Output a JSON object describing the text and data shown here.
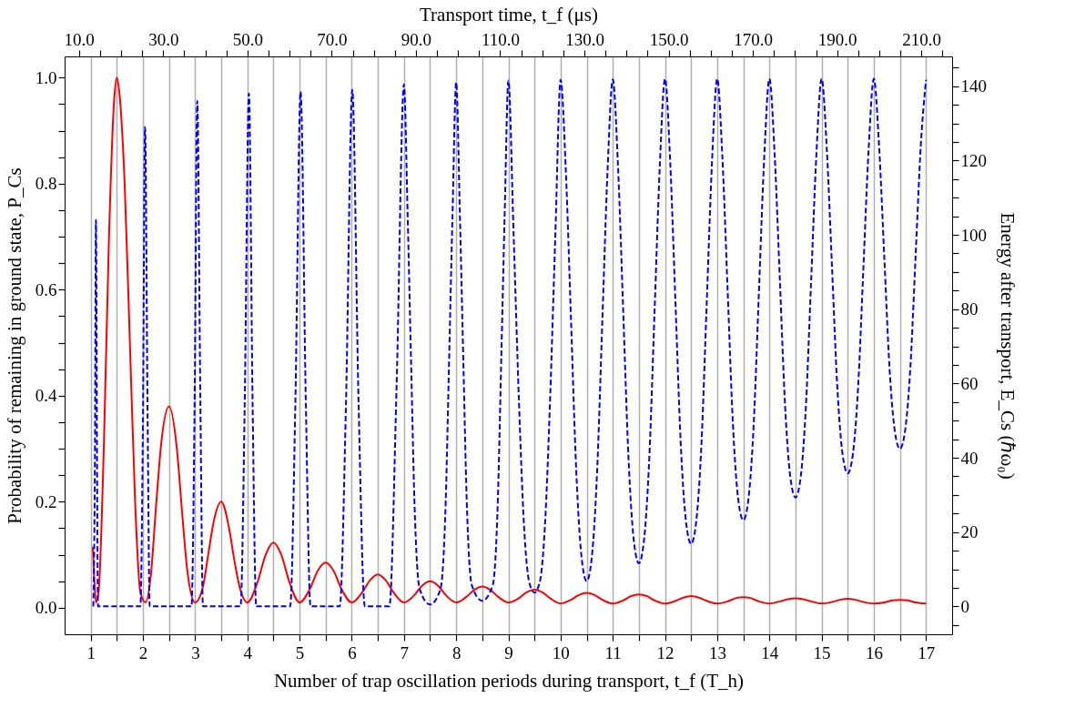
{
  "chart_data": {
    "type": "line",
    "xlabel": "Number of trap oscillation periods during transport, t_f (T_h)",
    "ylabel": "Probability of remaining in ground state, P_Cs",
    "y2label": "Energy after transport, E_Cs (ℏω₀)",
    "x2label": "Transport time, t_f (μs)",
    "xlim": [
      0.5,
      17.5
    ],
    "xticks": [
      1,
      {
        "value": 1.5,
        "label": null
      },
      2,
      {
        "value": 2.5,
        "label": null
      },
      3,
      {
        "value": 3.5,
        "label": null
      },
      4,
      {
        "value": 4.5,
        "label": null
      },
      5,
      {
        "value": 5.5,
        "label": null
      },
      6,
      {
        "value": 6.5,
        "label": null
      },
      7,
      {
        "value": 7.5,
        "label": null
      },
      8,
      {
        "value": 8.5,
        "label": null
      },
      9,
      {
        "value": 9.5,
        "label": null
      },
      10,
      {
        "value": 10.5,
        "label": null
      },
      11,
      {
        "value": 11.5,
        "label": null
      },
      12,
      {
        "value": 12.5,
        "label": null
      },
      13,
      {
        "value": 13.5,
        "label": null
      },
      14,
      {
        "value": 14.5,
        "label": null
      },
      15,
      {
        "value": 15.5,
        "label": null
      },
      16,
      {
        "value": 16.5,
        "label": null
      },
      17
    ],
    "x2lim": [
      6.6,
      217.3
    ],
    "x2ticks": [
      {
        "value": 10,
        "label": "10.0"
      },
      {
        "value": 15,
        "label": null
      },
      {
        "value": 20,
        "label": null
      },
      {
        "value": 25,
        "label": null
      },
      {
        "value": 30,
        "label": "30.0"
      },
      {
        "value": 35,
        "label": null
      },
      {
        "value": 40,
        "label": null
      },
      {
        "value": 45,
        "label": null
      },
      {
        "value": 50,
        "label": "50.0"
      },
      {
        "value": 55,
        "label": null
      },
      {
        "value": 60,
        "label": null
      },
      {
        "value": 65,
        "label": null
      },
      {
        "value": 70,
        "label": "70.0"
      },
      {
        "value": 75,
        "label": null
      },
      {
        "value": 80,
        "label": null
      },
      {
        "value": 85,
        "label": null
      },
      {
        "value": 90,
        "label": "90.0"
      },
      {
        "value": 95,
        "label": null
      },
      {
        "value": 100,
        "label": null
      },
      {
        "value": 105,
        "label": null
      },
      {
        "value": 110,
        "label": "110.0"
      },
      {
        "value": 115,
        "label": null
      },
      {
        "value": 120,
        "label": null
      },
      {
        "value": 125,
        "label": null
      },
      {
        "value": 130,
        "label": "130.0"
      },
      {
        "value": 135,
        "label": null
      },
      {
        "value": 140,
        "label": null
      },
      {
        "value": 145,
        "label": null
      },
      {
        "value": 150,
        "label": "150.0"
      },
      {
        "value": 155,
        "label": null
      },
      {
        "value": 160,
        "label": null
      },
      {
        "value": 165,
        "label": null
      },
      {
        "value": 170,
        "label": "170.0"
      },
      {
        "value": 175,
        "label": null
      },
      {
        "value": 180,
        "label": null
      },
      {
        "value": 185,
        "label": null
      },
      {
        "value": 190,
        "label": "190.0"
      },
      {
        "value": 195,
        "label": null
      },
      {
        "value": 200,
        "label": null
      },
      {
        "value": 205,
        "label": null
      },
      {
        "value": 210,
        "label": "210.0"
      },
      {
        "value": 215,
        "label": null
      }
    ],
    "ylim": [
      -0.05,
      1.04
    ],
    "yticks": [
      {
        "value": 0,
        "label": "0.0"
      },
      {
        "value": 0.05,
        "label": null
      },
      {
        "value": 0.1,
        "label": null
      },
      {
        "value": 0.15,
        "label": null
      },
      {
        "value": 0.2,
        "label": "0.2"
      },
      {
        "value": 0.25,
        "label": null
      },
      {
        "value": 0.3,
        "label": null
      },
      {
        "value": 0.35,
        "label": null
      },
      {
        "value": 0.4,
        "label": "0.4"
      },
      {
        "value": 0.45,
        "label": null
      },
      {
        "value": 0.5,
        "label": null
      },
      {
        "value": 0.55,
        "label": null
      },
      {
        "value": 0.6,
        "label": "0.6"
      },
      {
        "value": 0.65,
        "label": null
      },
      {
        "value": 0.7,
        "label": null
      },
      {
        "value": 0.75,
        "label": null
      },
      {
        "value": 0.8,
        "label": "0.8"
      },
      {
        "value": 0.85,
        "label": null
      },
      {
        "value": 0.9,
        "label": null
      },
      {
        "value": 0.95,
        "label": null
      },
      {
        "value": 1.0,
        "label": "1.0"
      }
    ],
    "y2lim": [
      -7.5,
      148
    ],
    "y2ticks": [
      {
        "value": -5,
        "label": null
      },
      0,
      {
        "value": 5,
        "label": null
      },
      {
        "value": 10,
        "label": null
      },
      {
        "value": 15,
        "label": null
      },
      20,
      {
        "value": 25,
        "label": null
      },
      {
        "value": 30,
        "label": null
      },
      {
        "value": 35,
        "label": null
      },
      40,
      {
        "value": 45,
        "label": null
      },
      {
        "value": 50,
        "label": null
      },
      {
        "value": 55,
        "label": null
      },
      60,
      {
        "value": 65,
        "label": null
      },
      {
        "value": 70,
        "label": null
      },
      {
        "value": 75,
        "label": null
      },
      80,
      {
        "value": 85,
        "label": null
      },
      {
        "value": 90,
        "label": null
      },
      {
        "value": 95,
        "label": null
      },
      100,
      {
        "value": 105,
        "label": null
      },
      {
        "value": 110,
        "label": null
      },
      {
        "value": 115,
        "label": null
      },
      120,
      {
        "value": 125,
        "label": null
      },
      {
        "value": 130,
        "label": null
      },
      {
        "value": 135,
        "label": null
      },
      140,
      {
        "value": 145,
        "label": null
      }
    ],
    "grid": "x",
    "series": [
      {
        "color": "#ff0000",
        "line_style": "solid",
        "axis": "y",
        "x": [
          1.04,
          1.07,
          1.1,
          1.15,
          1.25,
          1.35,
          1.45,
          1.5,
          1.55,
          1.65,
          1.75,
          1.85,
          1.95,
          2.05,
          2.15,
          2.25,
          2.35,
          2.5,
          2.65,
          2.75,
          2.85,
          3.0,
          3.15,
          3.25,
          3.35,
          3.5,
          3.65,
          3.75,
          3.85,
          4,
          4.2,
          4.35,
          4.5,
          4.65,
          4.8,
          5,
          5.2,
          5.35,
          5.5,
          5.65,
          5.8,
          6,
          6.2,
          6.35,
          6.5,
          6.65,
          6.8,
          7,
          7.2,
          7.35,
          7.5,
          7.65,
          7.8,
          8,
          8.2,
          8.35,
          8.5,
          8.65,
          8.8,
          9,
          9.2,
          9.35,
          9.5,
          9.65,
          9.8,
          10,
          10.2,
          10.35,
          10.5,
          10.65,
          10.8,
          11,
          11.2,
          11.35,
          11.5,
          11.65,
          11.8,
          12,
          12.2,
          12.35,
          12.5,
          12.65,
          12.8,
          13,
          13.2,
          13.35,
          13.5,
          13.65,
          13.8,
          14,
          14.2,
          14.35,
          14.5,
          14.65,
          14.8,
          15,
          15.2,
          15.35,
          15.5,
          15.65,
          15.8,
          16,
          16.2,
          16.35,
          16.5,
          16.65,
          16.8,
          17
        ],
        "values": [
          0.115,
          0.05,
          0.01,
          0.03,
          0.3,
          0.7,
          0.96,
          1.0,
          0.97,
          0.8,
          0.5,
          0.2,
          0.03,
          0.01,
          0.06,
          0.19,
          0.31,
          0.38,
          0.3,
          0.18,
          0.07,
          0.01,
          0.04,
          0.1,
          0.16,
          0.2,
          0.15,
          0.09,
          0.04,
          0.01,
          0.05,
          0.1,
          0.123,
          0.1,
          0.05,
          0.01,
          0.036,
          0.07,
          0.085,
          0.07,
          0.036,
          0.01,
          0.029,
          0.052,
          0.063,
          0.052,
          0.029,
          0.01,
          0.024,
          0.042,
          0.05,
          0.042,
          0.024,
          0.01,
          0.021,
          0.034,
          0.04,
          0.034,
          0.021,
          0.01,
          0.018,
          0.029,
          0.034,
          0.029,
          0.018,
          0.008,
          0.015,
          0.024,
          0.028,
          0.024,
          0.015,
          0.008,
          0.014,
          0.022,
          0.025,
          0.022,
          0.014,
          0.008,
          0.013,
          0.019,
          0.022,
          0.019,
          0.013,
          0.008,
          0.012,
          0.018,
          0.02,
          0.018,
          0.012,
          0.008,
          0.012,
          0.016,
          0.018,
          0.016,
          0.012,
          0.008,
          0.011,
          0.015,
          0.017,
          0.015,
          0.011,
          0.008,
          0.01,
          0.014,
          0.015,
          0.014,
          0.01,
          0.008
        ]
      },
      {
        "color": "#0000ff",
        "line_style": "dashed",
        "axis": "y2",
        "x": [
          1.05,
          1.08,
          1.1,
          1.12,
          1.14,
          1.95,
          2.0,
          2.04,
          2.09,
          2.13,
          2.93,
          2.99,
          3.04,
          3.1,
          3.15,
          3.87,
          3.95,
          4.03,
          4.1,
          4.17,
          4.82,
          4.92,
          5.02,
          5.12,
          5.21,
          5.77,
          5.89,
          6.01,
          6.13,
          6.25,
          6.72,
          6.86,
          7.0,
          7.07,
          7.14,
          7.2,
          7.3,
          7.5,
          7.7,
          7.8,
          7.86,
          7.93,
          8.0,
          8.07,
          8.14,
          8.2,
          8.3,
          8.5,
          8.7,
          8.8,
          8.86,
          8.93,
          9.0,
          9.1,
          9.2,
          9.3,
          9.4,
          9.5,
          9.6,
          9.7,
          9.8,
          9.9,
          10,
          10.1,
          10.2,
          10.3,
          10.4,
          10.5,
          10.6,
          10.7,
          10.8,
          10.9,
          11,
          11.1,
          11.2,
          11.3,
          11.4,
          11.5,
          11.6,
          11.7,
          11.8,
          11.9,
          12,
          12.1,
          12.2,
          12.3,
          12.4,
          12.5,
          12.6,
          12.7,
          12.8,
          12.9,
          13,
          13.1,
          13.2,
          13.3,
          13.4,
          13.5,
          13.6,
          13.7,
          13.8,
          13.9,
          14,
          14.1,
          14.2,
          14.3,
          14.4,
          14.5,
          14.6,
          14.7,
          14.8,
          14.9,
          15,
          15.1,
          15.2,
          15.3,
          15.4,
          15.5,
          15.6,
          15.7,
          15.8,
          15.9,
          16,
          16.1,
          16.2,
          16.3,
          16.4,
          16.5,
          16.6,
          16.7,
          16.8,
          16.9,
          17
        ],
        "values": [
          0,
          40,
          104,
          40,
          0,
          0,
          50,
          129,
          50,
          0,
          0,
          55,
          136,
          55,
          0,
          0,
          55,
          138,
          55,
          0,
          0,
          55,
          138.5,
          55,
          0,
          0,
          55,
          139,
          55,
          0,
          0,
          60,
          140.5,
          105.5,
          63.5,
          28.5,
          4.7,
          0.5,
          4.7,
          28.5,
          63.5,
          105.5,
          141,
          106.1,
          64.3,
          29.4,
          5.7,
          1.5,
          5.7,
          29.4,
          64.3,
          106.1,
          141.5,
          100.2,
          56.1,
          21.6,
          6.5,
          3.7,
          6.5,
          21.6,
          56.1,
          100.2,
          141.7,
          117.4,
          77.0,
          36.5,
          13.5,
          6.8,
          13.5,
          36.5,
          77.0,
          117.4,
          141.8,
          118.4,
          79.3,
          40.2,
          18.1,
          11.6,
          18.1,
          40.2,
          79.3,
          118.4,
          142,
          119.5,
          81.9,
          44.3,
          23.1,
          16.8,
          23.1,
          44.3,
          81.9,
          119.5,
          142,
          120.6,
          85.0,
          49.3,
          29.1,
          23.2,
          29.1,
          49.3,
          85.0,
          120.6,
          142,
          121.7,
          87.9,
          54.1,
          34.9,
          29.3,
          34.9,
          54.1,
          87.9,
          121.7,
          142,
          122.9,
          91.0,
          59.2,
          41.1,
          35.8,
          41.1,
          59.2,
          91.0,
          122.9,
          142,
          124.1,
          94.2,
          64.3,
          47.4,
          42.4,
          47.4,
          64.3,
          94.2,
          124.1,
          141.7
        ]
      }
    ]
  }
}
